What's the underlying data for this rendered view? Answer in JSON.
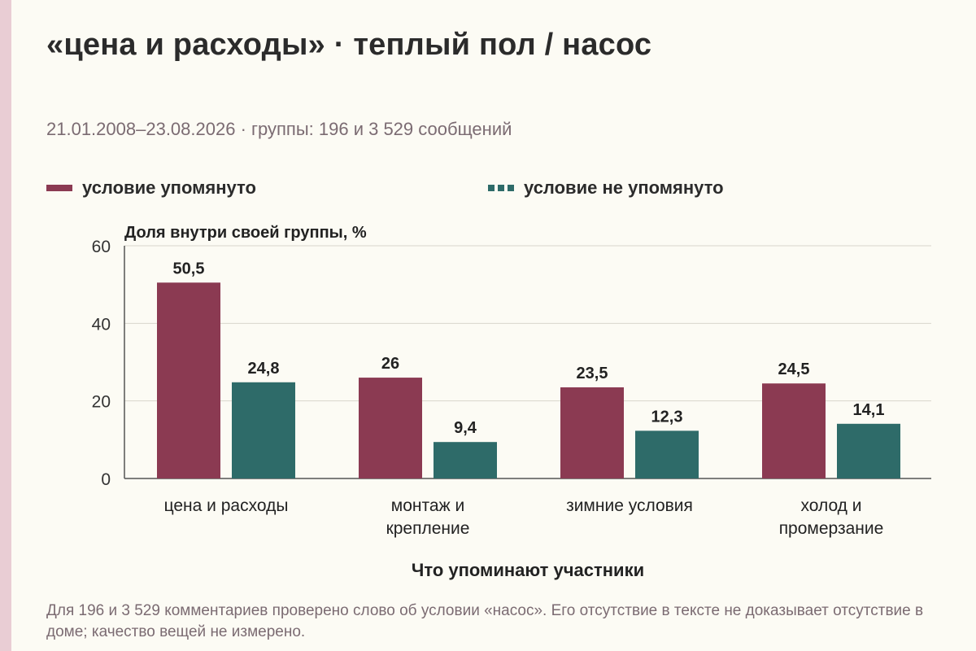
{
  "title": "«цена и расходы» · теплый пол / насос",
  "subtitle": "21.01.2008–23.08.2026 · группы: 196 и 3 529 сообщений",
  "legend": [
    {
      "label": "условие упомянуто",
      "color": "#8b3a52",
      "style": "solid"
    },
    {
      "label": "условие не упомянуто",
      "color": "#2e6b69",
      "style": "dashed"
    }
  ],
  "footnote": "Для 196 и 3 529 комментариев проверено слово об условии «насос». Его отсутствие в тексте не доказывает отсутствие в доме; качество вещей не измерено.",
  "chart_data": {
    "type": "bar",
    "ylabel": "Доля внутри своей группы, %",
    "xlabel": "Что упоминают участники",
    "ylim": [
      0,
      60
    ],
    "yticks": [
      "0",
      "20",
      "40",
      "60"
    ],
    "grid": true,
    "legend_position": "top",
    "categories": [
      [
        "цена и расходы"
      ],
      [
        "монтаж и",
        "крепление"
      ],
      [
        "зимние условия"
      ],
      [
        "холод и",
        "промерзание"
      ]
    ],
    "series": [
      {
        "name": "условие упомянуто",
        "color": "#8b3a52",
        "values": [
          50.5,
          26,
          23.5,
          24.5
        ],
        "labels": [
          "50,5",
          "26",
          "23,5",
          "24,5"
        ]
      },
      {
        "name": "условие не упомянуто",
        "color": "#2e6b69",
        "values": [
          24.8,
          9.4,
          12.3,
          14.1
        ],
        "labels": [
          "24,8",
          "9,4",
          "12,3",
          "14,1"
        ]
      }
    ]
  }
}
